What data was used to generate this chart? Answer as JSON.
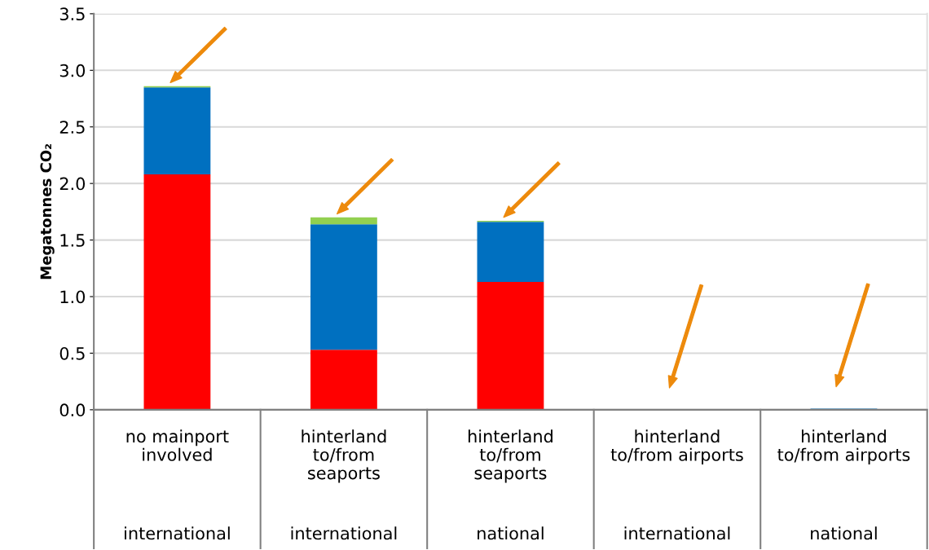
{
  "chart_data": {
    "type": "bar",
    "stacked": true,
    "ylabel": "Megatonnes CO₂",
    "categories": [
      "no mainport\ninvolved\n\ninternational",
      "hinterland\nto/from\nseaports\n\ninternational",
      "hinterland\nto/from\nseaports\n\nnational",
      "hinterland\nto/from airports\n\ninternational",
      "hinterland\nto/from airports\n\nnational"
    ],
    "series": [
      {
        "color": "#ff0000",
        "values": [
          2.08,
          0.53,
          1.13,
          0,
          0
        ]
      },
      {
        "color": "#0070c0",
        "values": [
          0.77,
          1.11,
          0.53,
          0,
          0.01
        ]
      },
      {
        "color": "#92d050",
        "values": [
          0.01,
          0.06,
          0.01,
          0,
          0
        ]
      }
    ],
    "ylim": [
      0,
      3.5
    ],
    "yticks": [
      {
        "value": 0,
        "label": "0.0"
      },
      0.5,
      {
        "value": 1,
        "label": "1.0"
      },
      1.5,
      {
        "value": 2,
        "label": "2.0"
      },
      2.5,
      {
        "value": 3,
        "label": "3.0"
      },
      3.5
    ],
    "grid": "y"
  }
}
